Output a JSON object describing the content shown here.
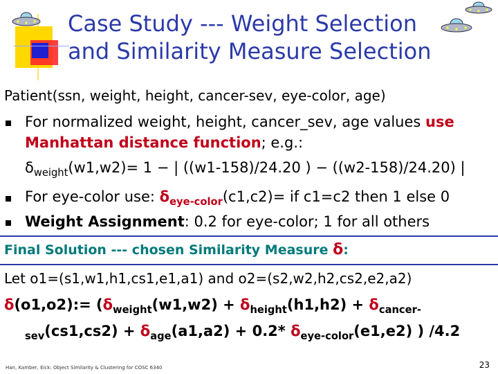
{
  "slide": {
    "title_line1": "Case Study --- Weight Selection",
    "title_line2": "and Similarity Measure Selection",
    "patient_schema": "Patient(ssn, weight, height, cancer-sev, eye-color, age)",
    "bullet1": {
      "prefix": "For normalized weight, height, cancer_sev, age values ",
      "use": "use",
      "mdf": "Manhattan distance function",
      "suffix": "; e.g.:"
    },
    "formula1": {
      "delta": "δ",
      "sub": "weight",
      "rest": "(w1,w2)= 1 − | ((w1-158)/24.20 ) − ((w2-158)/24.20) |"
    },
    "bullet2": {
      "prefix": "For eye-color use: ",
      "delta": "δ",
      "sub": "eye-color",
      "rest": "(c1,c2)= if c1=c2 then 1 else 0"
    },
    "bullet3": {
      "label": "Weight Assignment",
      "rest": ": 0.2 for eye-color; 1 for all others"
    },
    "final_heading": {
      "text": "Final Solution --- chosen Similarity Measure ",
      "delta": "δ",
      "colon": ":"
    },
    "let_line": "Let o1=(s1,w1,h1,cs1,e1,a1) and o2=(s2,w2,h2,cs2,e2,a2)",
    "final_formula": {
      "d": "δ",
      "p1": "(o1,o2):= (",
      "s_weight": "weight",
      "p2": "(w1,w2) + ",
      "s_height": "height",
      "p3": "(h1,h2) + ",
      "s_cancer": "cancer-",
      "s_sev": "sev",
      "p4": "(cs1,cs2) + ",
      "s_age": "age",
      "p5": "(a1,a2) + 0.2* ",
      "s_eye": "eye-color",
      "p6": "(e1,e2) ) /4.2"
    },
    "footer": "Han, Kamber, Eick: Object Similarity & Clustering for COSC 6340",
    "page_number": "23"
  },
  "colors": {
    "title": "#2b3aa8",
    "accent_red": "#c0001a",
    "accent_teal": "#007a7a"
  },
  "icons": [
    "ufo-icon",
    "ufo-icon",
    "ufo-icon"
  ]
}
